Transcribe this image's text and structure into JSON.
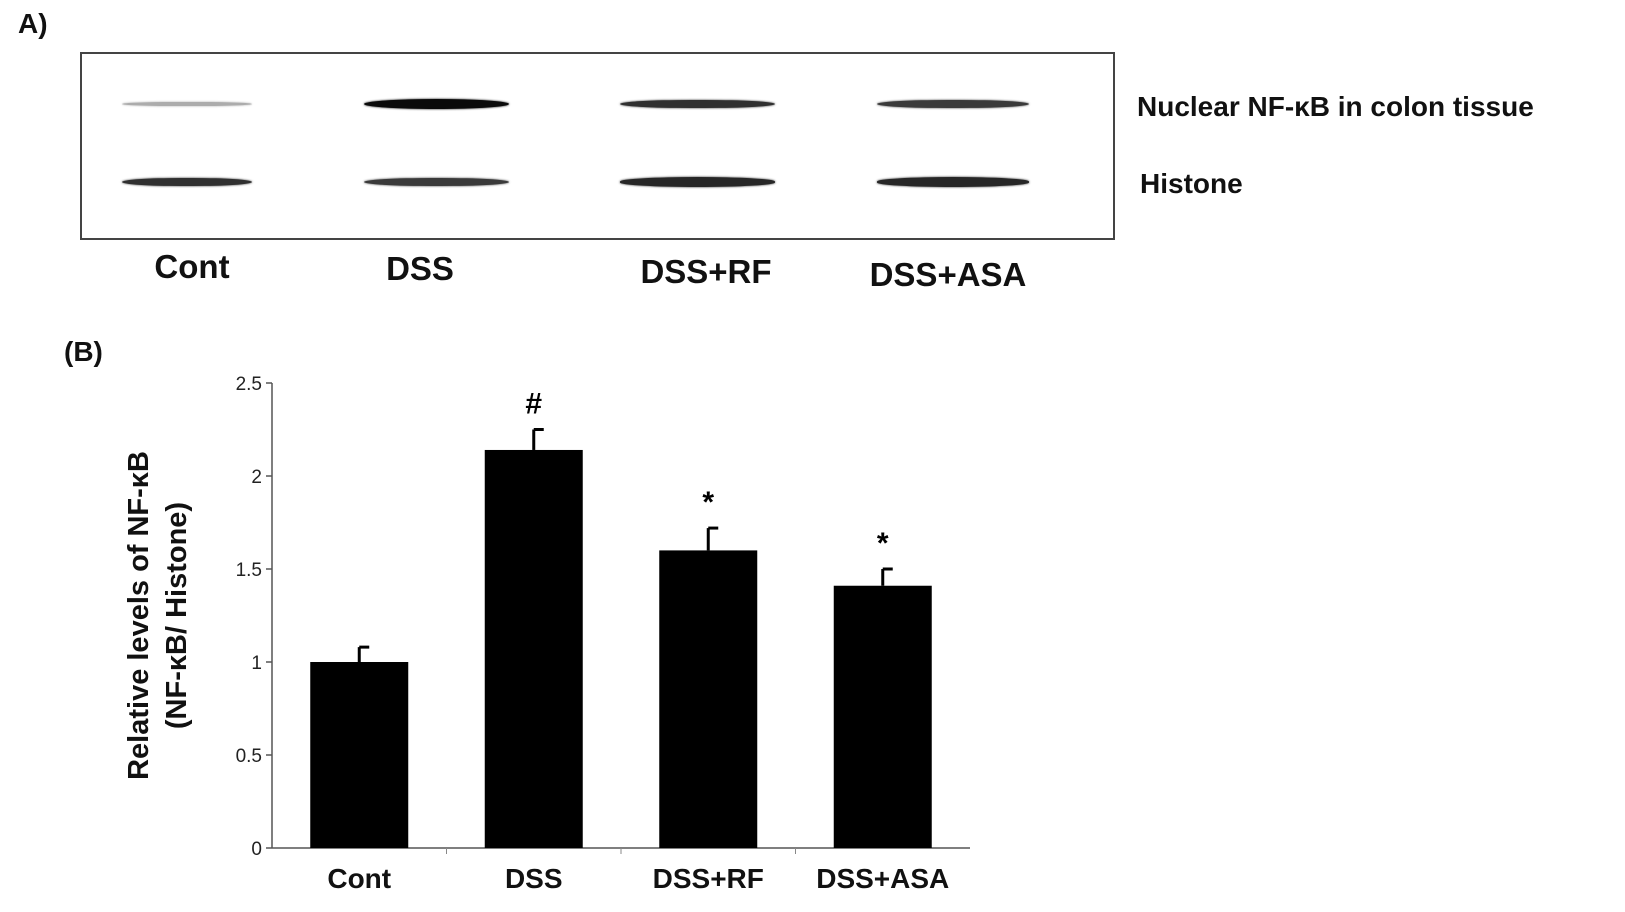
{
  "panelA": {
    "label": "A)",
    "row_labels": [
      "Nuclear NF-κB in colon tissue",
      "Histone"
    ],
    "lanes": [
      "Cont",
      "DSS",
      "DSS+RF",
      "DSS+ASA"
    ],
    "band_intensity": {
      "nuclear_nfkb": [
        0.15,
        1.0,
        0.8,
        0.75
      ],
      "histone": [
        0.8,
        0.75,
        0.85,
        0.85
      ]
    }
  },
  "panelB": {
    "label": "(B)"
  },
  "chart_data": {
    "type": "bar",
    "categories": [
      "Cont",
      "DSS",
      "DSS+RF",
      "DSS+ASA"
    ],
    "values": [
      1.0,
      2.14,
      1.6,
      1.41
    ],
    "errors": [
      0.08,
      0.11,
      0.12,
      0.09
    ],
    "annotations": [
      "",
      "#",
      "*",
      "*"
    ],
    "ylabel": "Relative levels of NF-κB",
    "ylabel2": "(NF-κB/ Histone)",
    "xlabel": "",
    "ylim": [
      0,
      2.5
    ],
    "yticks": [
      "0",
      "0.5",
      "1",
      "1.5",
      "2",
      "2.5"
    ],
    "bar_color": "#000000",
    "grid": false
  }
}
